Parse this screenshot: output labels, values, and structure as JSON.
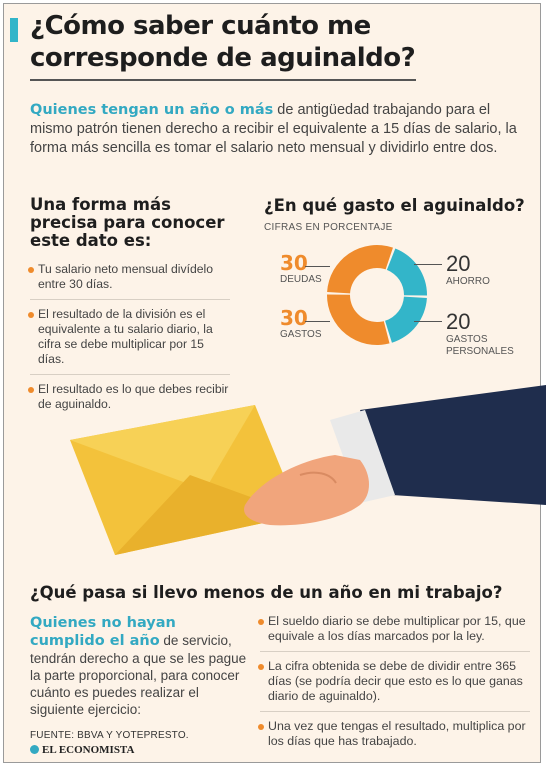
{
  "title": "¿Cómo saber cuánto me corresponde de aguinaldo?",
  "intro": {
    "highlight": "Quienes tengan un año o más",
    "text": " de antigüedad trabajando para el mismo patrón tienen derecho a recibir el equivalente a 15 días de salario, la forma más sencilla es tomar el salario neto mensual y dividirlo entre dos."
  },
  "left_section": {
    "heading": "Una forma más precisa para conocer este dato es:",
    "bullets": [
      "Tu salario neto mensual divídelo entre 30 días.",
      "El resultado de la división es el equivalente a tu salario diario, la cifra se debe multiplicar por 15 días.",
      "El resultado es lo que debes recibir de aguinaldo."
    ]
  },
  "chart_data": {
    "type": "pie",
    "title": "¿En qué gasto el aguinaldo?",
    "subtitle": "CIFRAS EN PORCENTAJE",
    "slices": [
      {
        "label": "AHORRO",
        "value": 20,
        "color": "#33b5c9"
      },
      {
        "label": "GASTOS PERSONALES",
        "value": 20,
        "color": "#33b5c9"
      },
      {
        "label": "GASTOS",
        "value": 30,
        "color": "#ef8b2c"
      },
      {
        "label": "DEUDAS",
        "value": 30,
        "color": "#ef8b2c"
      }
    ],
    "value_labels": {
      "deudas": "30",
      "gastos": "30",
      "ahorro": "20",
      "gastos_personales": "20"
    },
    "label_text": {
      "deudas": "DEUDAS",
      "gastos": "GASTOS",
      "ahorro": "AHORRO",
      "gastos_personales_1": "GASTOS",
      "gastos_personales_2": "PERSONALES"
    }
  },
  "bottom_section": {
    "heading": "¿Qué pasa si llevo menos de un año en mi trabajo?",
    "highlight": "Quienes no hayan cumplido el año",
    "text": " de servicio, tendrán derecho a que se les pague la parte proporcional, para conocer cuánto es puedes realizar el siguiente ejercicio:",
    "bullets": [
      "El sueldo diario se debe multiplicar por 15, que equivale a los días marcados por la ley.",
      "La cifra obtenida se debe de dividir entre 365 días (se podría decir que esto es lo que ganas diario de aguinaldo).",
      "Una vez que tengas el resultado, multiplica por los días que has trabajado."
    ]
  },
  "source": "FUENTE: BBVA Y YOTEPRESTO.",
  "brand": "EL ECONOMISTA",
  "colors": {
    "accent_blue": "#33b5c9",
    "accent_orange": "#ef8b2c",
    "background": "#fdf3e8",
    "envelope": "#f3c23b",
    "sleeve": "#1f2d4d"
  }
}
